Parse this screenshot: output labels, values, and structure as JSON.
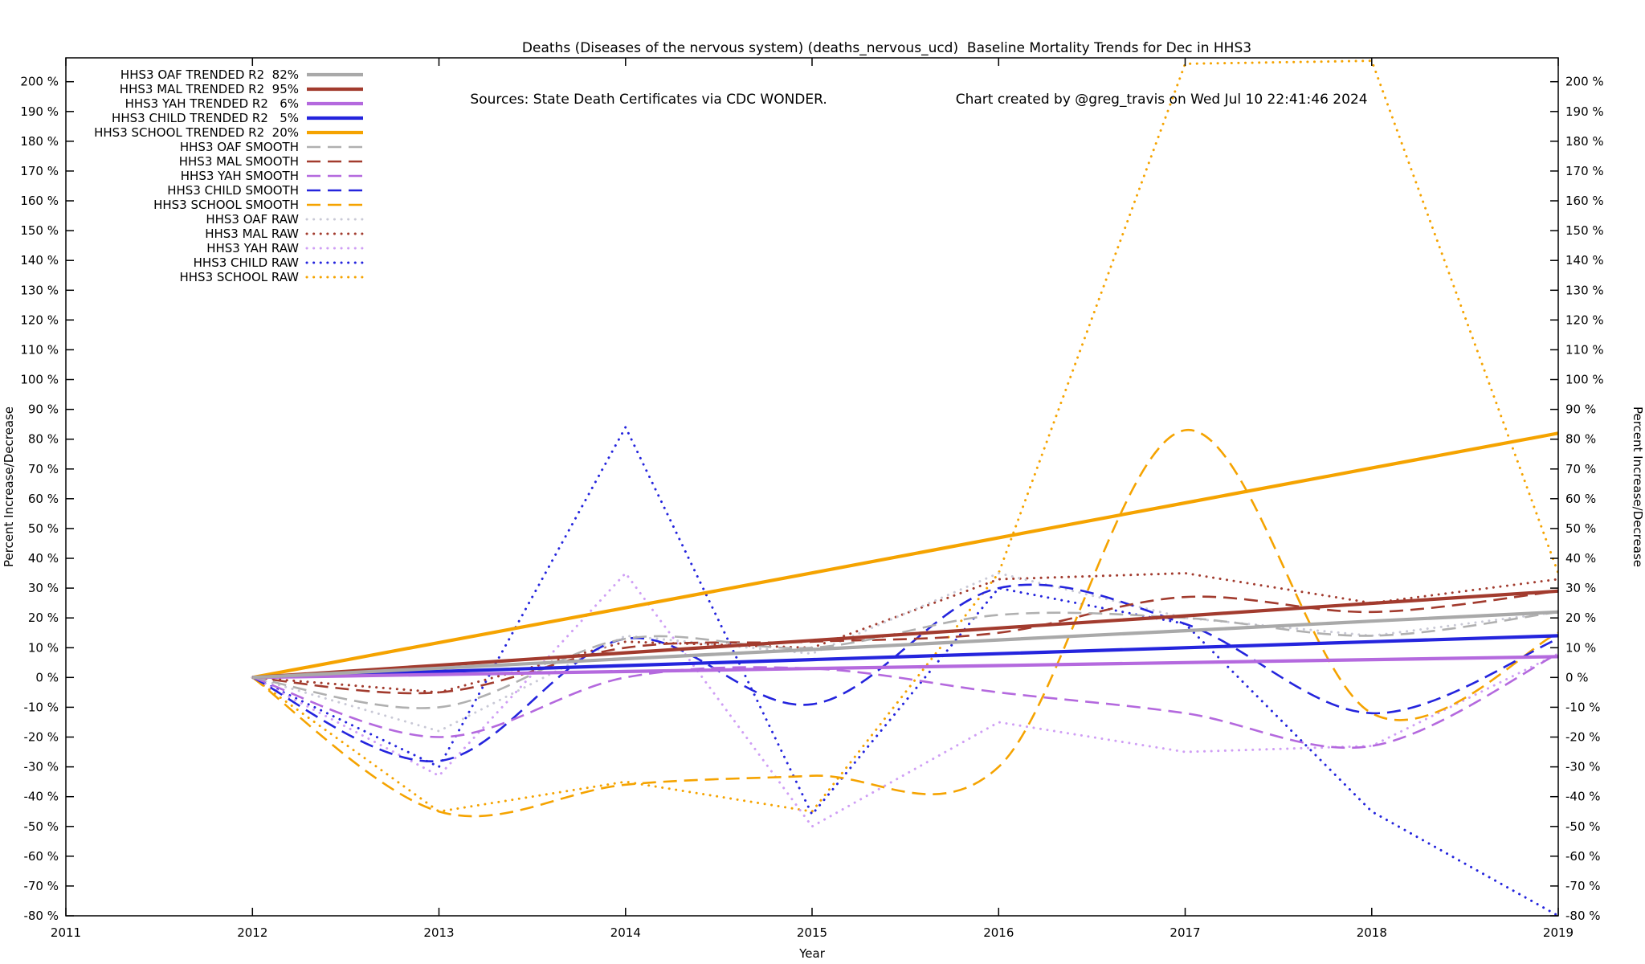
{
  "title": "Deaths (Diseases of the nervous system) (deaths_nervous_ucd)  Baseline Mortality Trends for Dec in HHS3",
  "subtitle": {
    "sources": "Sources: State Death Certificates via CDC WONDER.",
    "credit": "Chart created by @greg_travis on Wed Jul 10 22:41:46 2024"
  },
  "chart_data": {
    "type": "line",
    "title": "Deaths (Diseases of the nervous system) (deaths_nervous_ucd)  Baseline Mortality Trends for Dec in HHS3",
    "xlabel": "Year",
    "ylabel_left": "Percent Increase/Decrease",
    "ylabel_right": "Percent Increase/Decrease",
    "xlim": [
      2011,
      2019
    ],
    "ylim": [
      -80,
      208
    ],
    "xticks": [
      2011,
      2012,
      2013,
      2014,
      2015,
      2016,
      2017,
      2018,
      2019
    ],
    "yticks": [
      200,
      190,
      180,
      170,
      160,
      150,
      140,
      130,
      120,
      110,
      100,
      90,
      80,
      70,
      60,
      50,
      40,
      30,
      20,
      10,
      0,
      -10,
      -20,
      -30,
      -40,
      -50,
      -60,
      -70,
      -80
    ],
    "ytick_suffix": " %",
    "grid": false,
    "legend_position": "top-left",
    "x": [
      2012,
      2013,
      2014,
      2015,
      2016,
      2017,
      2018,
      2019
    ],
    "series": [
      {
        "label": "HHS3 OAF TRENDED R2  82%",
        "group": "OAF",
        "kind": "trended",
        "r2": "82%",
        "color": "#a9a9a9",
        "style": "solid",
        "interp": "linear",
        "values": [
          0,
          3.1,
          6.3,
          9.4,
          12.6,
          15.7,
          18.9,
          22
        ]
      },
      {
        "label": "HHS3 MAL TRENDED R2  95%",
        "group": "MAL",
        "kind": "trended",
        "r2": "95%",
        "color": "#a23b2e",
        "style": "solid",
        "interp": "linear",
        "values": [
          0,
          4.1,
          8.3,
          12.4,
          16.6,
          20.7,
          24.9,
          29
        ]
      },
      {
        "label": "HHS3 YAH TRENDED R2   6%",
        "group": "YAH",
        "kind": "trended",
        "r2": "6%",
        "color": "#b469de",
        "style": "solid",
        "interp": "linear",
        "values": [
          0,
          1,
          2,
          3,
          4,
          5,
          6,
          7
        ]
      },
      {
        "label": "HHS3 CHILD TRENDED R2   5%",
        "group": "CHILD",
        "kind": "trended",
        "r2": "5%",
        "color": "#2424dd",
        "style": "solid",
        "interp": "linear",
        "values": [
          0,
          2,
          4,
          6,
          8,
          10,
          12,
          14
        ]
      },
      {
        "label": "HHS3 SCHOOL TRENDED R2  20%",
        "group": "SCHOOL",
        "kind": "trended",
        "r2": "20%",
        "color": "#f5a300",
        "style": "solid",
        "interp": "linear",
        "values": [
          0,
          11.7,
          23.4,
          35.1,
          46.9,
          58.6,
          70.3,
          82
        ]
      },
      {
        "label": "HHS3 OAF SMOOTH",
        "group": "OAF",
        "kind": "smooth",
        "color": "#b0b0b0",
        "style": "dashed",
        "interp": "smooth",
        "values": [
          0,
          -10,
          13,
          10,
          21,
          20,
          14,
          22
        ]
      },
      {
        "label": "HHS3 MAL SMOOTH",
        "group": "MAL",
        "kind": "smooth",
        "color": "#a23b2e",
        "style": "dashed",
        "interp": "smooth",
        "values": [
          0,
          -5,
          10,
          12,
          15,
          27,
          22,
          29
        ]
      },
      {
        "label": "HHS3 YAH SMOOTH",
        "group": "YAH",
        "kind": "smooth",
        "color": "#b469de",
        "style": "dashed",
        "interp": "smooth",
        "values": [
          0,
          -20,
          0,
          3,
          -5,
          -12,
          -23,
          8
        ]
      },
      {
        "label": "HHS3 CHILD SMOOTH",
        "group": "CHILD",
        "kind": "smooth",
        "color": "#2424dd",
        "style": "dashed",
        "interp": "smooth",
        "values": [
          0,
          -28,
          13,
          -9,
          30,
          18,
          -12,
          13
        ]
      },
      {
        "label": "HHS3 SCHOOL SMOOTH",
        "group": "SCHOOL",
        "kind": "smooth",
        "color": "#f5a300",
        "style": "dashed",
        "interp": "smooth",
        "values": [
          0,
          -45,
          -36,
          -33,
          -30,
          83,
          -12,
          15
        ]
      },
      {
        "label": "HHS3 OAF RAW",
        "group": "OAF",
        "kind": "raw",
        "color": "#c9c9d6",
        "style": "dotted",
        "interp": "linear",
        "values": [
          0,
          -18,
          14,
          8,
          35,
          20,
          14,
          22
        ]
      },
      {
        "label": "HHS3 MAL RAW",
        "group": "MAL",
        "kind": "raw",
        "color": "#a23b2e",
        "style": "dotted",
        "interp": "linear",
        "values": [
          0,
          -5,
          12,
          10,
          33,
          35,
          25,
          33
        ]
      },
      {
        "label": "HHS3 YAH RAW",
        "group": "YAH",
        "kind": "raw",
        "color": "#cf9ef5",
        "style": "dotted",
        "interp": "linear",
        "values": [
          0,
          -33,
          35,
          -50,
          -15,
          -25,
          -23,
          8
        ]
      },
      {
        "label": "HHS3 CHILD RAW",
        "group": "CHILD",
        "kind": "raw",
        "color": "#2424dd",
        "style": "dotted",
        "interp": "linear",
        "values": [
          0,
          -30,
          84,
          -46,
          30,
          18,
          -45,
          -80
        ]
      },
      {
        "label": "HHS3 SCHOOL RAW",
        "group": "SCHOOL",
        "kind": "raw",
        "color": "#f5a300",
        "style": "dotted",
        "interp": "linear",
        "values": [
          0,
          -45,
          -35,
          -45,
          35,
          206,
          207,
          35
        ]
      }
    ]
  }
}
